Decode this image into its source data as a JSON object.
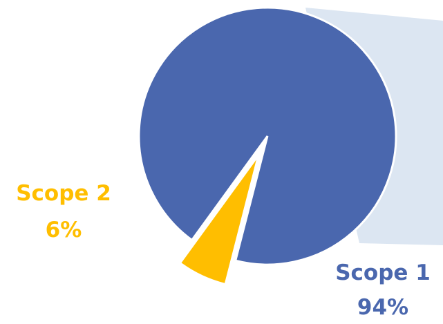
{
  "chart_data": {
    "type": "pie",
    "series": [
      {
        "slices": [
          {
            "label": "Scope 1",
            "value": 94,
            "value_label": "94%",
            "color": "#4A67AE"
          },
          {
            "label": "Scope 2",
            "value": 6,
            "value_label": "6%",
            "color": "#FFBE00"
          }
        ]
      }
    ],
    "exploded_slice": "Scope 2",
    "connector_color": "#DCE6F2",
    "legend": "none"
  }
}
